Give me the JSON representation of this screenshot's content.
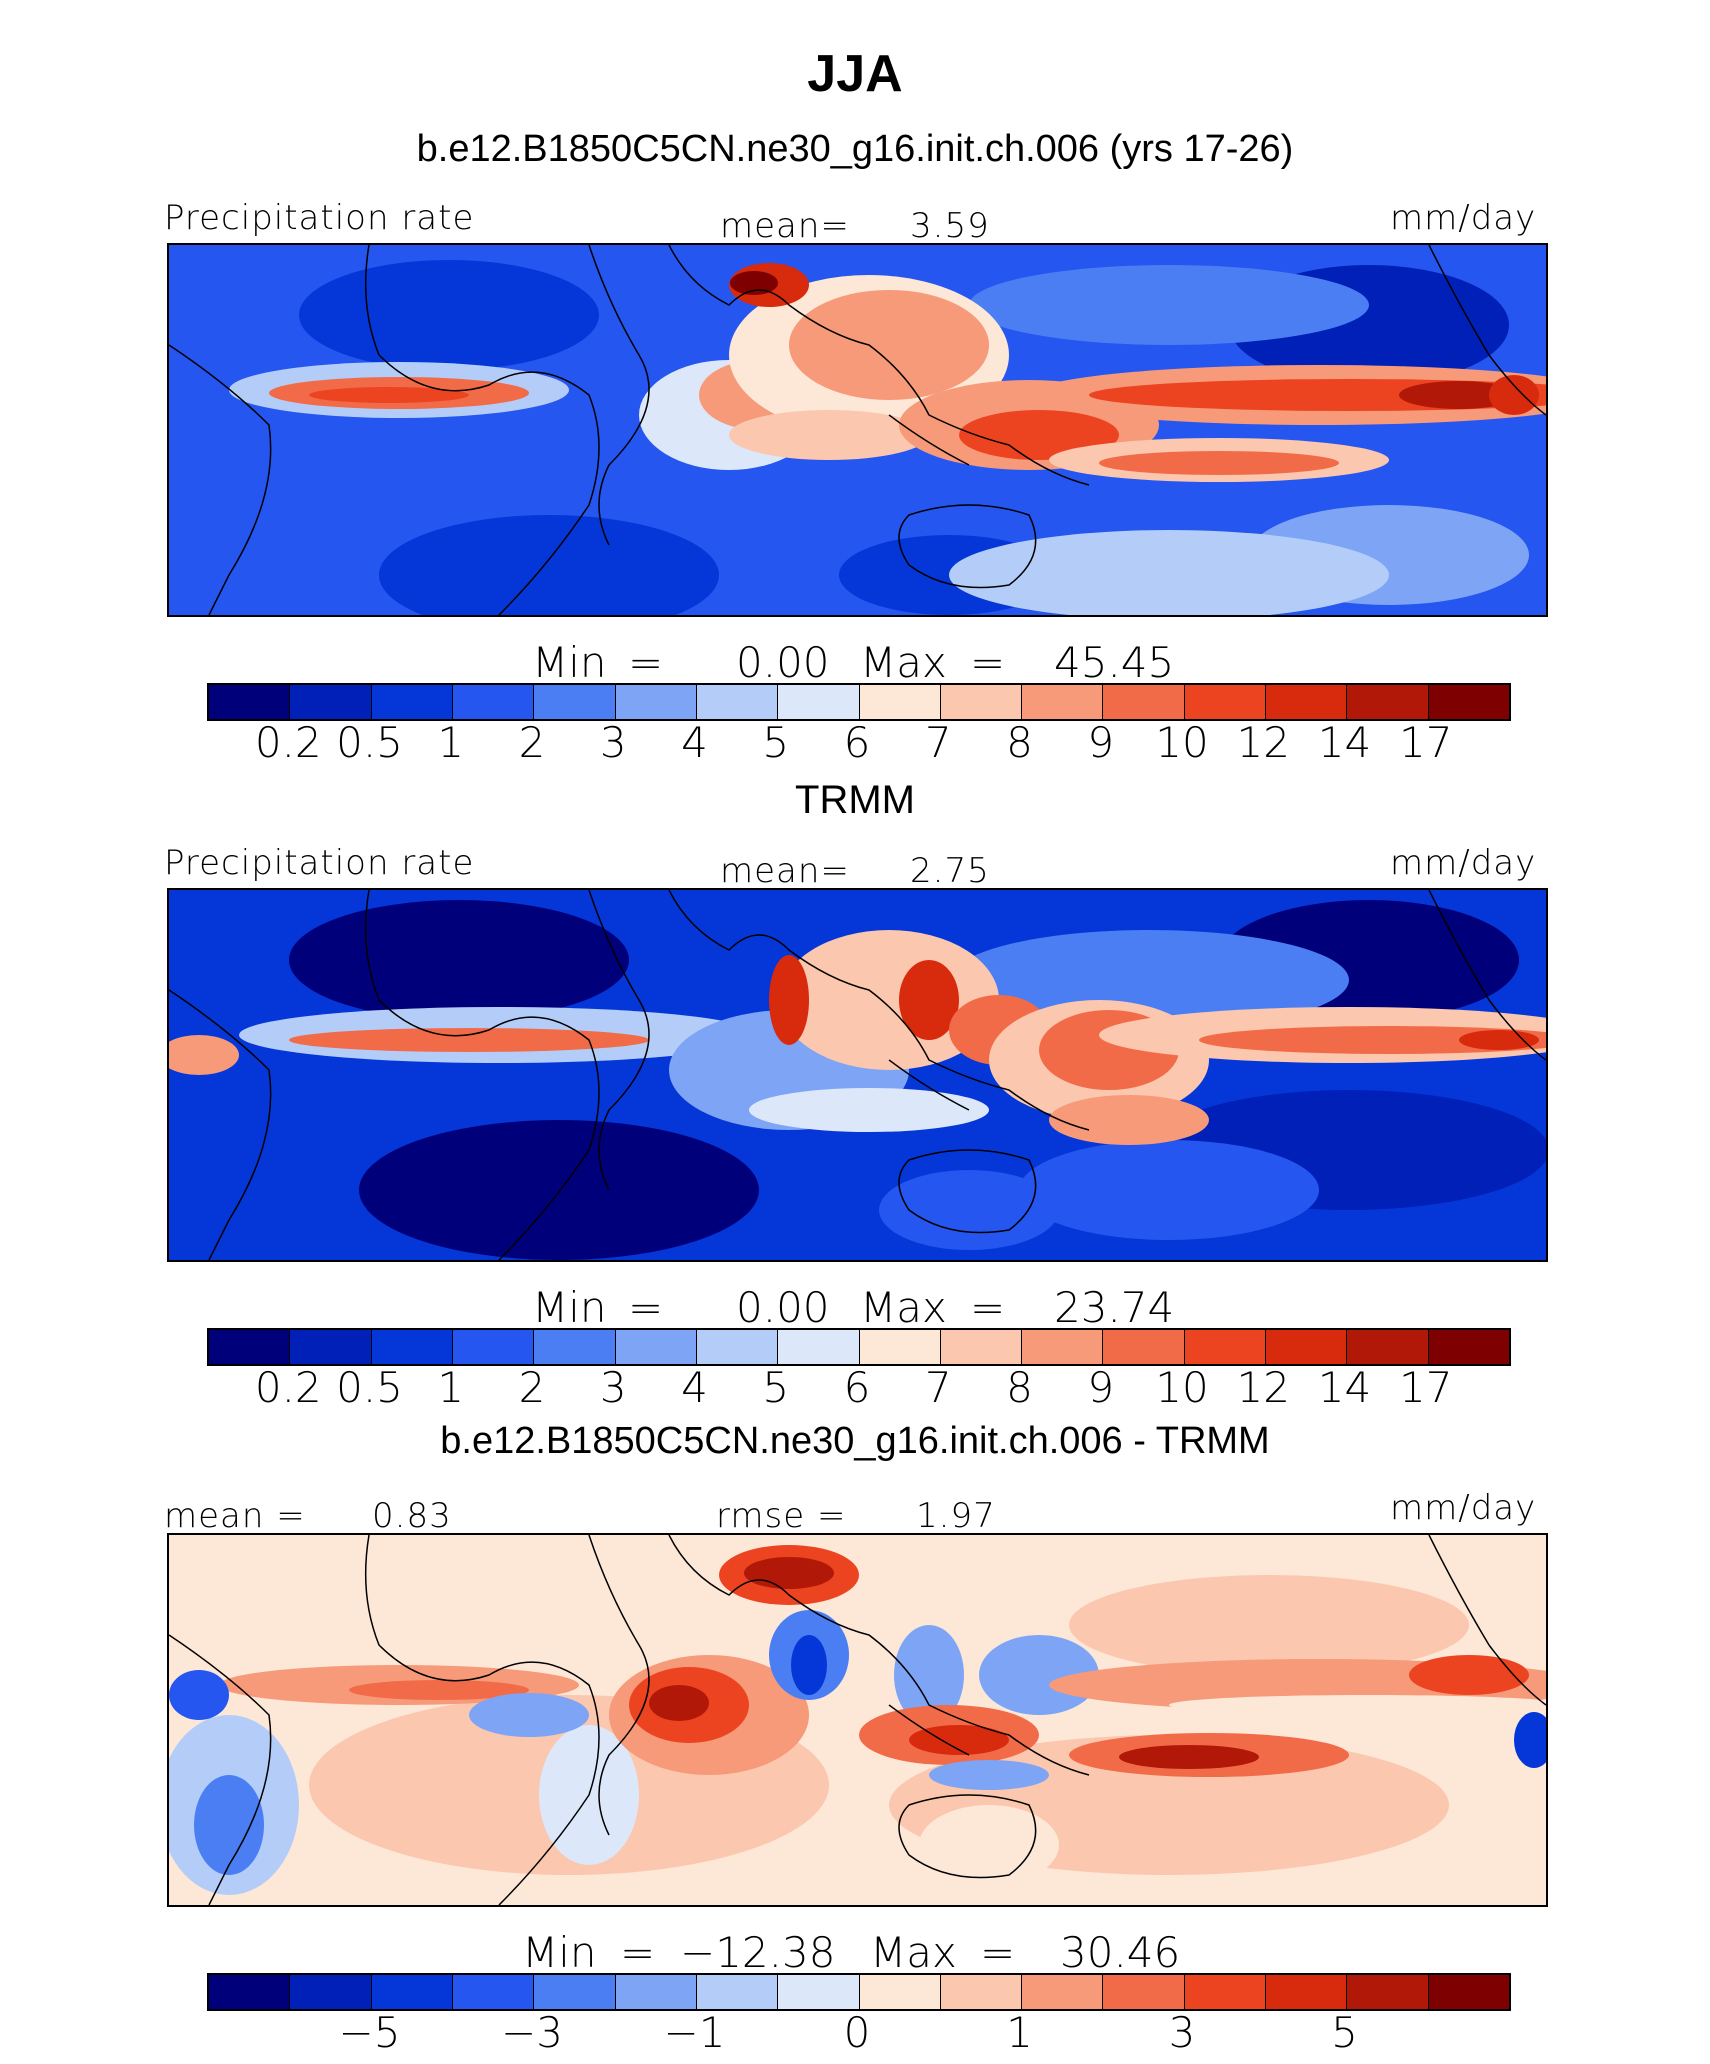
{
  "title": "JJA",
  "colors": [
    "#00007a",
    "#0020b8",
    "#0537d8",
    "#2556f0",
    "#4a7ef2",
    "#7ea4f5",
    "#b4cdf8",
    "#dce8fa",
    "#fde8d8",
    "#fbc7ae",
    "#f69a7a",
    "#f26b48",
    "#ec4420",
    "#d82a0c",
    "#b21808",
    "#7e0000"
  ],
  "panel1": {
    "subtitle": "b.e12.B1850C5CN.ne30_g16.init.ch.006 (yrs 17-26)",
    "left_label": "Precipitation rate",
    "mean_label": "mean=",
    "mean_value": "3.59",
    "units": "mm/day",
    "min_label": "Min",
    "min_value": "0.00",
    "max_label": "Max",
    "max_value": "45.45",
    "ticks": [
      "0.2",
      "0.5",
      "1",
      "2",
      "3",
      "4",
      "5",
      "6",
      "7",
      "8",
      "9",
      "10",
      "12",
      "14",
      "17"
    ]
  },
  "panel2": {
    "subtitle": "TRMM",
    "left_label": "Precipitation rate",
    "mean_label": "mean=",
    "mean_value": "2.75",
    "units": "mm/day",
    "min_label": "Min",
    "min_value": "0.00",
    "max_label": "Max",
    "max_value": "23.74",
    "ticks": [
      "0.2",
      "0.5",
      "1",
      "2",
      "3",
      "4",
      "5",
      "6",
      "7",
      "8",
      "9",
      "10",
      "12",
      "14",
      "17"
    ]
  },
  "panel3": {
    "subtitle": "b.e12.B1850C5CN.ne30_g16.init.ch.006 - TRMM",
    "mean_label": "mean =",
    "mean_value": "0.83",
    "rmse_label": "rmse =",
    "rmse_value": "1.97",
    "units": "mm/day",
    "min_label": "Min",
    "min_value": "−12.38",
    "max_label": "Max",
    "max_value": "30.46",
    "ticks": [
      "−5",
      "−3",
      "−1",
      "0",
      "1",
      "3",
      "5"
    ]
  }
}
